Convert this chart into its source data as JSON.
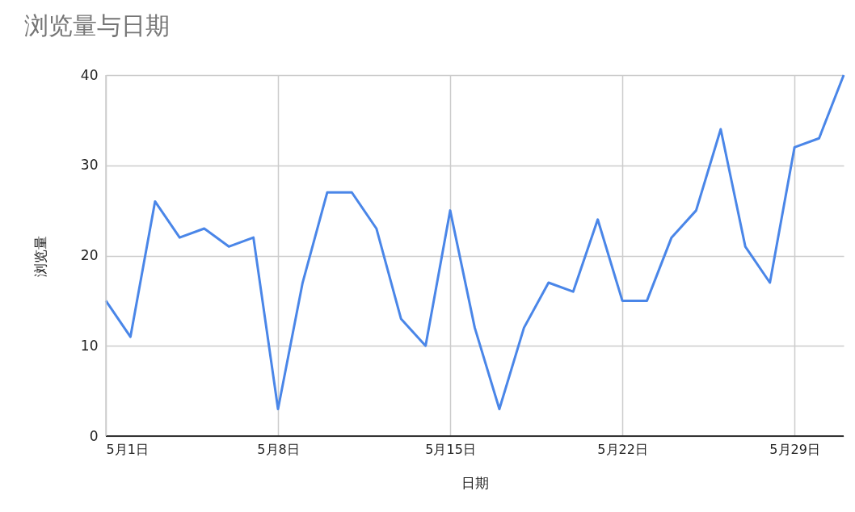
{
  "chart_data": {
    "type": "line",
    "title": "浏览量与日期",
    "xlabel": "日期",
    "ylabel": "浏览量",
    "x": [
      "--05-01",
      "--05-02",
      "--05-03",
      "--05-04",
      "--05-05",
      "--05-06",
      "--05-07",
      "--05-08",
      "--05-09",
      "--05-10",
      "--05-11",
      "--05-12",
      "--05-13",
      "--05-14",
      "--05-15",
      "--05-16",
      "--05-17",
      "--05-18",
      "--05-19",
      "--05-20",
      "--05-21",
      "--05-22",
      "--05-23",
      "--05-24",
      "--05-25",
      "--05-26",
      "--05-27",
      "--05-28",
      "--05-29",
      "--05-30",
      "--05-31"
    ],
    "series": [
      {
        "color": "#4a86e8",
        "values": [
          15,
          11,
          26,
          22,
          23,
          21,
          22,
          3,
          17,
          27,
          27,
          23,
          13,
          10,
          25,
          12,
          3,
          12,
          17,
          16,
          24,
          15,
          15,
          22,
          25,
          34,
          21,
          17,
          32,
          33,
          40
        ]
      }
    ],
    "xlim": [
      "--05-01",
      "--05-31"
    ],
    "xticks": [
      {
        "value": "--05-01",
        "label": "5月1日"
      },
      {
        "value": "--05-08",
        "label": "5月8日"
      },
      {
        "value": "--05-15",
        "label": "5月15日"
      },
      {
        "value": "--05-22",
        "label": "5月22日"
      },
      {
        "value": "--05-29",
        "label": "5月29日"
      }
    ],
    "ylim": [
      0,
      40
    ],
    "yticks": [
      0,
      10,
      20,
      30,
      40
    ],
    "grid": true,
    "marker": "none",
    "line_style": "solid"
  }
}
